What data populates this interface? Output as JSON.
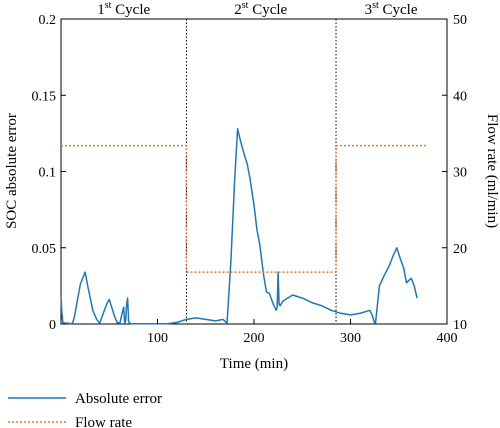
{
  "chart_data": {
    "type": "line",
    "xlabel": "Time (min)",
    "ylabel": "SOC absolute error",
    "y2label": "Flow rate (ml/min)",
    "xlim": [
      0,
      400
    ],
    "ylim": [
      0,
      0.2
    ],
    "y2lim": [
      10,
      50
    ],
    "xticks": [
      100,
      200,
      300,
      400
    ],
    "yticks": [
      0,
      0.05,
      0.1,
      0.15,
      0.2
    ],
    "yticklabels": [
      "0",
      "0.05",
      "0.1",
      "0.15",
      "0.2"
    ],
    "y2ticks": [
      10,
      20,
      30,
      40,
      50
    ],
    "cycle_boundaries": [
      130,
      285
    ],
    "cycles": [
      {
        "x": 65,
        "base": "1",
        "sup": "st",
        "word": " Cycle"
      },
      {
        "x": 207,
        "base": "2",
        "sup": "st",
        "word": " Cycle"
      },
      {
        "x": 342,
        "base": "3",
        "sup": "st",
        "word": " Cycle"
      }
    ],
    "series": [
      {
        "name": "Absolute error",
        "axis": "left",
        "color": "#1f77b4",
        "style": "solid",
        "x": [
          0,
          1,
          2,
          4,
          6,
          8,
          10,
          12,
          14,
          20,
          25,
          28,
          30,
          33,
          37,
          40,
          45,
          48,
          50,
          52,
          55,
          58,
          61,
          64,
          65,
          66,
          67,
          68,
          69,
          70,
          71,
          72,
          73,
          75,
          80,
          90,
          100,
          110,
          120,
          130,
          140,
          150,
          160,
          168,
          172,
          176,
          180,
          183,
          186,
          190,
          193,
          196,
          200,
          203,
          206,
          210,
          213,
          216,
          220,
          223,
          224,
          225,
          226,
          227,
          230,
          240,
          250,
          260,
          270,
          280,
          290,
          300,
          310,
          315,
          320,
          323,
          325,
          326,
          330,
          335,
          340,
          345,
          348,
          352,
          355,
          358,
          361,
          363,
          366,
          369
        ],
        "y": [
          0.018,
          0.006,
          0.001,
          0.0005,
          0.0005,
          0.0005,
          0.0002,
          0.0005,
          0.005,
          0.026,
          0.034,
          0.024,
          0.018,
          0.009,
          0.003,
          0.0005,
          0.009,
          0.014,
          0.016,
          0.012,
          0.006,
          0.001,
          0.0005,
          0.009,
          0.011,
          0.0005,
          0.002,
          0.013,
          0.017,
          0.002,
          0.0005,
          0.0003,
          0.0002,
          0.0002,
          0.0002,
          0.0002,
          0.0002,
          0.0002,
          0.001,
          0.003,
          0.004,
          0.003,
          0.002,
          0.003,
          0.0006,
          0.04,
          0.095,
          0.128,
          0.12,
          0.111,
          0.105,
          0.095,
          0.078,
          0.062,
          0.052,
          0.032,
          0.021,
          0.02,
          0.013,
          0.009,
          0.011,
          0.034,
          0.013,
          0.012,
          0.015,
          0.019,
          0.017,
          0.014,
          0.012,
          0.009,
          0.007,
          0.006,
          0.007,
          0.008,
          0.009,
          0.005,
          0.0005,
          0.001,
          0.025,
          0.032,
          0.038,
          0.046,
          0.05,
          0.042,
          0.037,
          0.027,
          0.029,
          0.03,
          0.025,
          0.017
        ]
      },
      {
        "name": "Flow rate",
        "axis": "right",
        "color": "#e8763a",
        "style": "dotted",
        "x": [
          0,
          130,
          130,
          285,
          285,
          380
        ],
        "y": [
          33.4,
          33.4,
          16.8,
          16.8,
          33.4,
          33.4
        ]
      }
    ]
  }
}
